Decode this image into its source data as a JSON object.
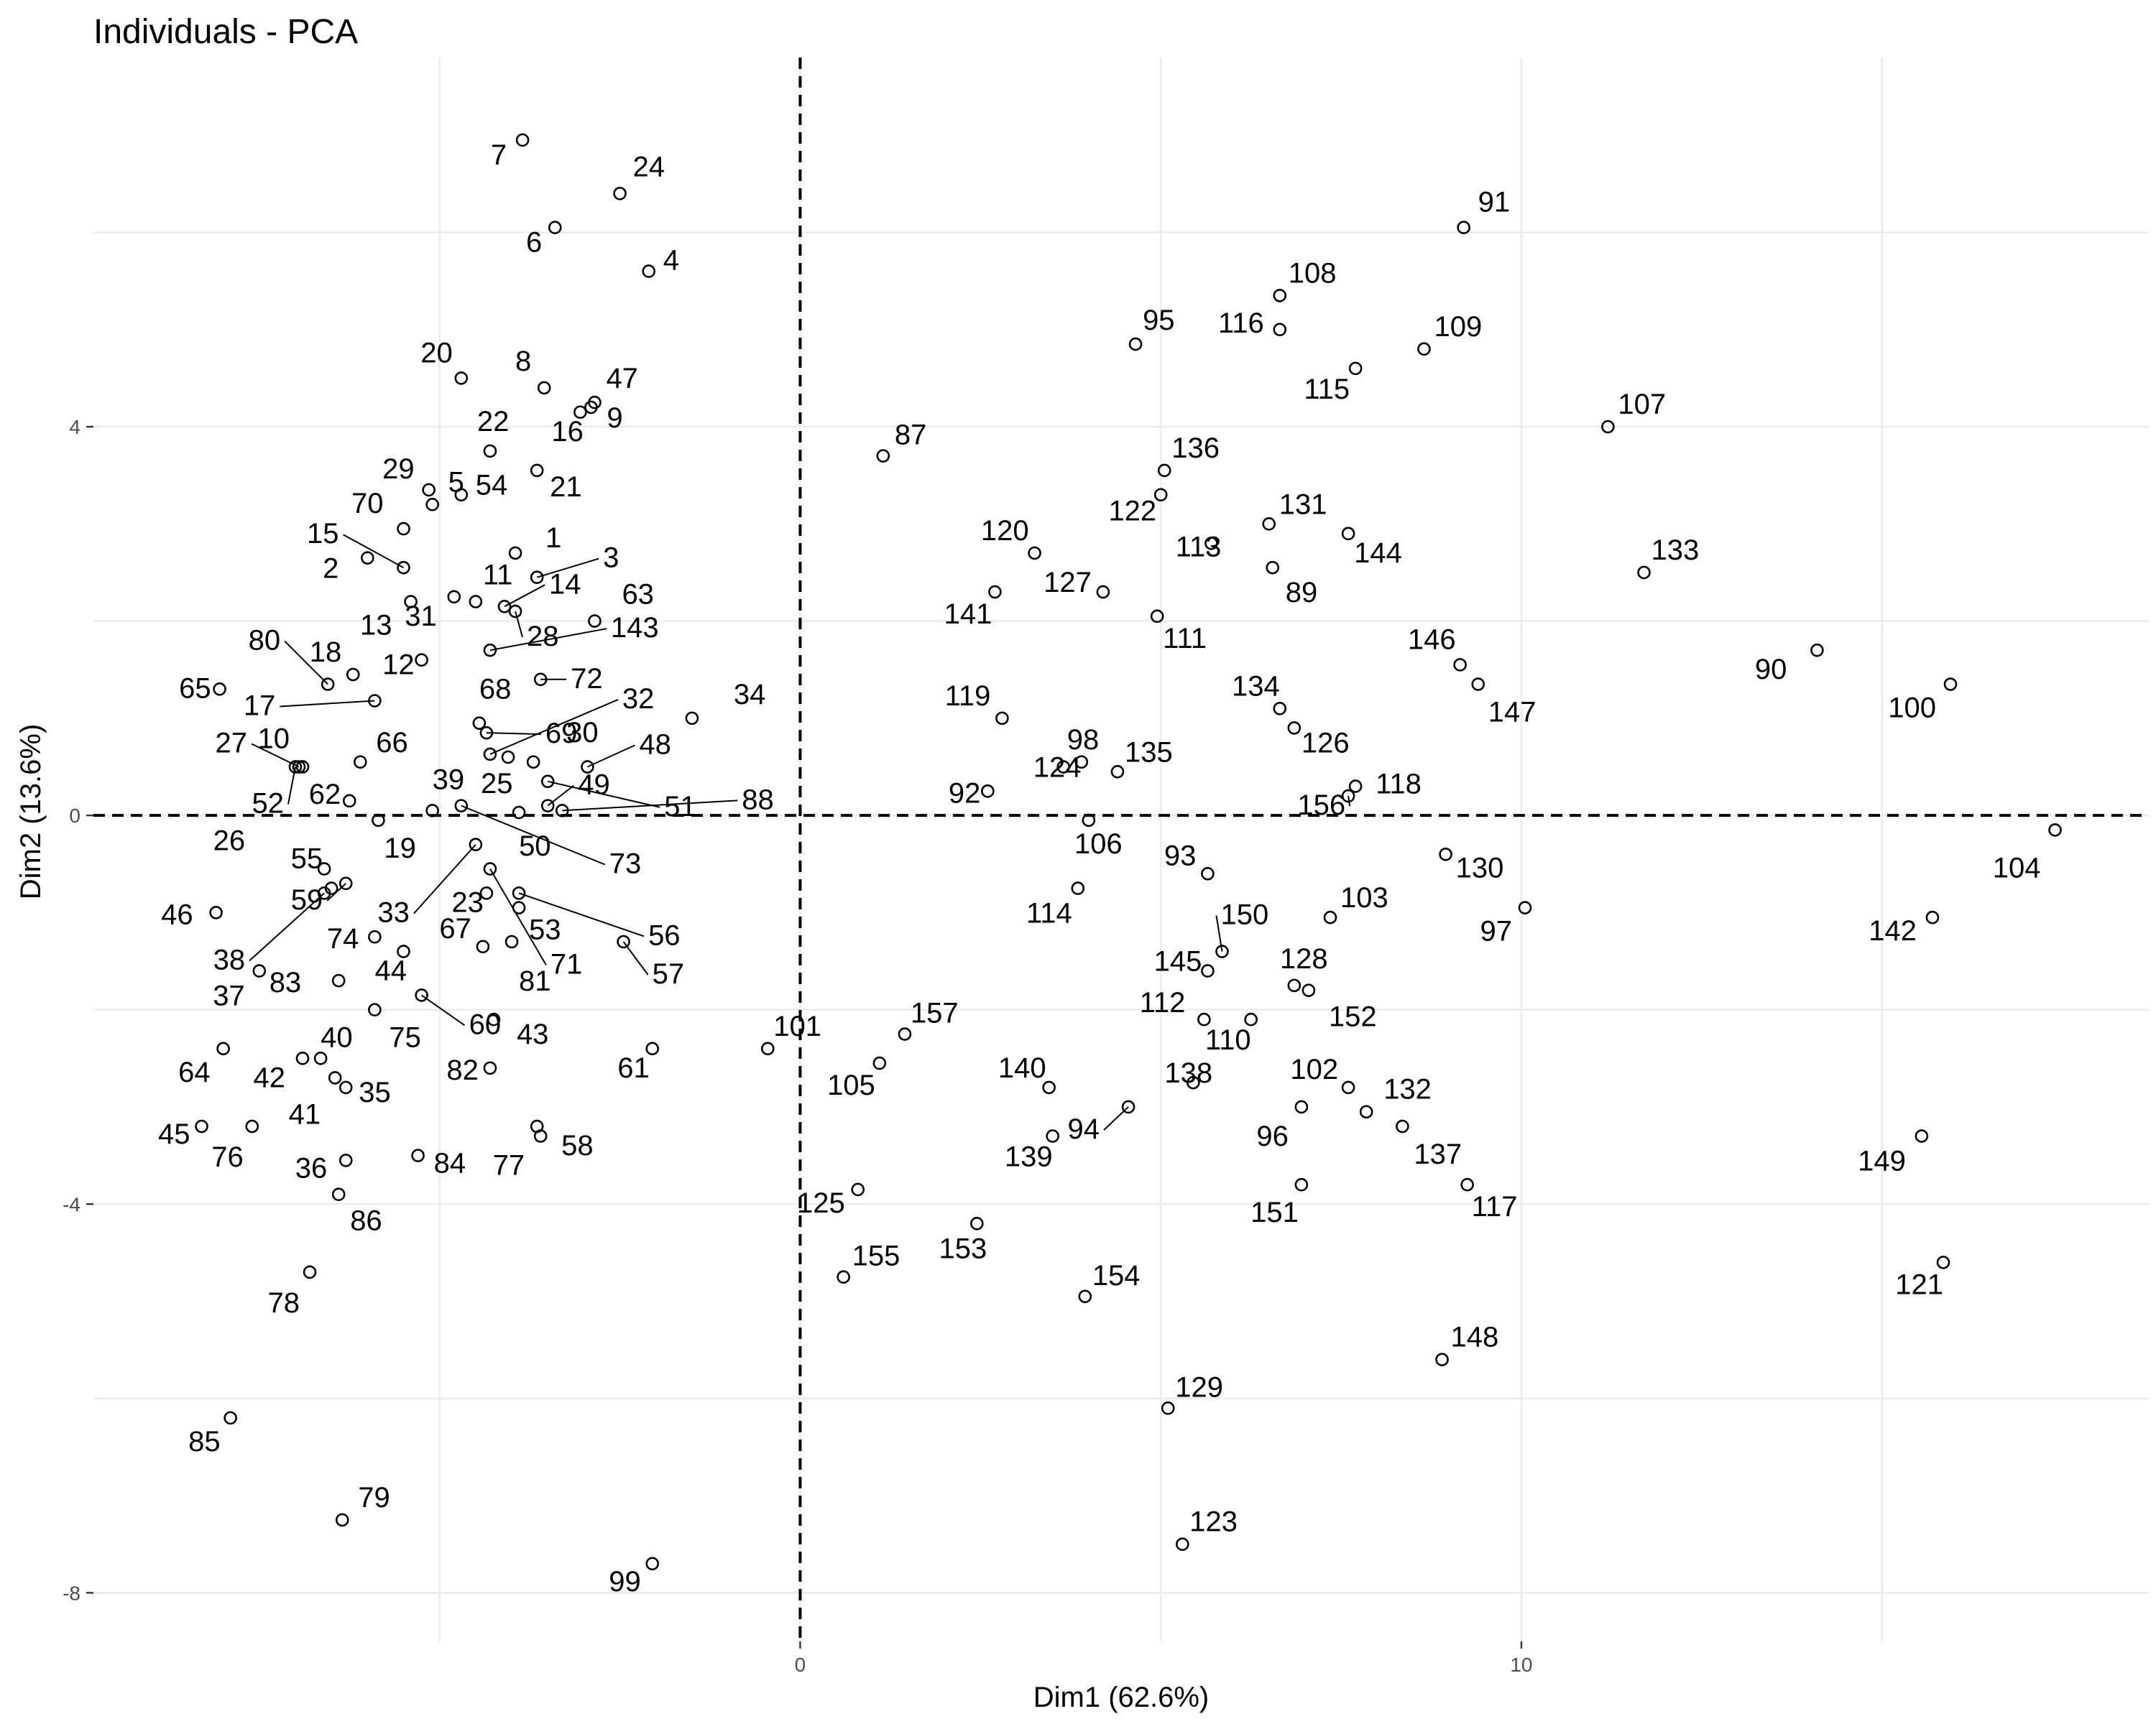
{
  "chart_data": {
    "type": "scatter",
    "title": "Individuals - PCA",
    "xlabel": "Dim1 (62.6%)",
    "ylabel": "Dim2 (13.6%)",
    "xlim": [
      -9.8,
      18.7
    ],
    "ylim": [
      -8.5,
      7.8
    ],
    "x_ticks": [
      0,
      10
    ],
    "y_ticks": [
      4,
      0,
      -4,
      -8
    ],
    "x_tick_labels": [
      "0",
      "10"
    ],
    "y_tick_labels": [
      "4",
      "0",
      "-4",
      "-8"
    ],
    "grid": true,
    "reference_lines": {
      "x": 0,
      "y": 0,
      "style": "dashed"
    },
    "points": [
      {
        "label": "1",
        "x": -3.95,
        "y": 2.7
      },
      {
        "label": "2",
        "x": -6.0,
        "y": 2.65
      },
      {
        "label": "3",
        "x": -3.65,
        "y": 2.45
      },
      {
        "label": "4",
        "x": -2.1,
        "y": 5.6
      },
      {
        "label": "5",
        "x": -5.1,
        "y": 3.2
      },
      {
        "label": "6",
        "x": -3.4,
        "y": 6.05
      },
      {
        "label": "7",
        "x": -3.85,
        "y": 6.95
      },
      {
        "label": "8",
        "x": -3.55,
        "y": 4.4
      },
      {
        "label": "9",
        "x": -2.9,
        "y": 4.2
      },
      {
        "label": "10",
        "x": -6.9,
        "y": 0.5
      },
      {
        "label": "11",
        "x": -4.5,
        "y": 2.2
      },
      {
        "label": "12",
        "x": -5.25,
        "y": 1.6
      },
      {
        "label": "13",
        "x": -5.4,
        "y": 2.2
      },
      {
        "label": "14",
        "x": -4.1,
        "y": 2.15
      },
      {
        "label": "15",
        "x": -5.5,
        "y": 2.55
      },
      {
        "label": "16",
        "x": -3.05,
        "y": 4.15
      },
      {
        "label": "17",
        "x": -5.9,
        "y": 1.18
      },
      {
        "label": "18",
        "x": -6.2,
        "y": 1.45
      },
      {
        "label": "19",
        "x": -5.85,
        "y": -0.05
      },
      {
        "label": "20",
        "x": -4.7,
        "y": 4.5
      },
      {
        "label": "21",
        "x": -3.65,
        "y": 3.55
      },
      {
        "label": "22",
        "x": -4.3,
        "y": 3.75
      },
      {
        "label": "23",
        "x": -4.35,
        "y": -0.8
      },
      {
        "label": "24",
        "x": -2.5,
        "y": 6.4
      },
      {
        "label": "25",
        "x": -4.05,
        "y": 0.6
      },
      {
        "label": "26",
        "x": -6.6,
        "y": -0.55
      },
      {
        "label": "27",
        "x": -6.95,
        "y": 0.5
      },
      {
        "label": "28",
        "x": -3.95,
        "y": 2.1
      },
      {
        "label": "29",
        "x": -5.15,
        "y": 3.35
      },
      {
        "label": "30",
        "x": -3.7,
        "y": 0.55
      },
      {
        "label": "31",
        "x": -4.8,
        "y": 2.25
      },
      {
        "label": "32",
        "x": -4.3,
        "y": 0.63
      },
      {
        "label": "33",
        "x": -4.5,
        "y": -0.3
      },
      {
        "label": "34",
        "x": -1.5,
        "y": 1.0
      },
      {
        "label": "35",
        "x": -6.3,
        "y": -2.8
      },
      {
        "label": "36",
        "x": -6.3,
        "y": -3.55
      },
      {
        "label": "37",
        "x": -7.5,
        "y": -1.6
      },
      {
        "label": "38",
        "x": -6.6,
        "y": -0.8
      },
      {
        "label": "39",
        "x": -5.1,
        "y": 0.05
      },
      {
        "label": "40",
        "x": -6.65,
        "y": -2.5
      },
      {
        "label": "41",
        "x": -6.45,
        "y": -2.7
      },
      {
        "label": "42",
        "x": -6.9,
        "y": -2.5
      },
      {
        "label": "43",
        "x": -4.25,
        "y": -2.1
      },
      {
        "label": "44",
        "x": -5.5,
        "y": -1.4
      },
      {
        "label": "45",
        "x": -8.3,
        "y": -3.2
      },
      {
        "label": "46",
        "x": -8.1,
        "y": -1.0
      },
      {
        "label": "47",
        "x": -2.85,
        "y": 4.25
      },
      {
        "label": "48",
        "x": -2.95,
        "y": 0.5
      },
      {
        "label": "49",
        "x": -3.5,
        "y": 0.1
      },
      {
        "label": "50",
        "x": -3.9,
        "y": 0.03
      },
      {
        "label": "51",
        "x": -3.5,
        "y": 0.35
      },
      {
        "label": "52",
        "x": -7.0,
        "y": 0.5
      },
      {
        "label": "53",
        "x": -3.9,
        "y": -0.95
      },
      {
        "label": "54",
        "x": -4.7,
        "y": 3.3
      },
      {
        "label": "55",
        "x": -6.5,
        "y": -0.75
      },
      {
        "label": "56",
        "x": -3.9,
        "y": -0.8
      },
      {
        "label": "57",
        "x": -2.45,
        "y": -1.3
      },
      {
        "label": "58",
        "x": -3.65,
        "y": -3.2
      },
      {
        "label": "59",
        "x": -6.3,
        "y": -0.7
      },
      {
        "label": "60",
        "x": -5.25,
        "y": -1.85
      },
      {
        "label": "61",
        "x": -2.05,
        "y": -2.4
      },
      {
        "label": "62",
        "x": -6.25,
        "y": 0.15
      },
      {
        "label": "63",
        "x": -2.85,
        "y": 2.0
      },
      {
        "label": "64",
        "x": -8.0,
        "y": -2.4
      },
      {
        "label": "65",
        "x": -8.05,
        "y": 1.3
      },
      {
        "label": "66",
        "x": -6.1,
        "y": 0.55
      },
      {
        "label": "67",
        "x": -4.4,
        "y": -1.35
      },
      {
        "label": "68",
        "x": -4.45,
        "y": 0.95
      },
      {
        "label": "69",
        "x": -4.35,
        "y": 0.85
      },
      {
        "label": "70",
        "x": -5.5,
        "y": 2.95
      },
      {
        "label": "71",
        "x": -4.3,
        "y": -0.55
      },
      {
        "label": "72",
        "x": -3.6,
        "y": 1.4
      },
      {
        "label": "73",
        "x": -4.7,
        "y": 0.1
      },
      {
        "label": "74",
        "x": -5.9,
        "y": -1.25
      },
      {
        "label": "75",
        "x": -5.9,
        "y": -2.0
      },
      {
        "label": "76",
        "x": -7.6,
        "y": -3.2
      },
      {
        "label": "77",
        "x": -3.6,
        "y": -3.3
      },
      {
        "label": "78",
        "x": -6.8,
        "y": -4.7
      },
      {
        "label": "79",
        "x": -6.35,
        "y": -7.25
      },
      {
        "label": "80",
        "x": -6.55,
        "y": 1.35
      },
      {
        "label": "81",
        "x": -4.0,
        "y": -1.3
      },
      {
        "label": "82",
        "x": -4.3,
        "y": -2.6
      },
      {
        "label": "83",
        "x": -6.4,
        "y": -1.7
      },
      {
        "label": "84",
        "x": -5.3,
        "y": -3.5
      },
      {
        "label": "85",
        "x": -7.9,
        "y": -6.2
      },
      {
        "label": "86",
        "x": -6.4,
        "y": -3.9
      },
      {
        "label": "87",
        "x": 1.15,
        "y": 3.7
      },
      {
        "label": "88",
        "x": -3.3,
        "y": 0.05
      },
      {
        "label": "89",
        "x": 6.55,
        "y": 2.55
      },
      {
        "label": "90",
        "x": 14.1,
        "y": 1.7
      },
      {
        "label": "91",
        "x": 9.2,
        "y": 6.05
      },
      {
        "label": "92",
        "x": 2.6,
        "y": 0.25
      },
      {
        "label": "93",
        "x": 5.65,
        "y": -0.6
      },
      {
        "label": "94",
        "x": 4.55,
        "y": -3.0
      },
      {
        "label": "95",
        "x": 4.65,
        "y": 4.85
      },
      {
        "label": "96",
        "x": 6.95,
        "y": -3.0
      },
      {
        "label": "97",
        "x": 10.05,
        "y": -0.95
      },
      {
        "label": "98",
        "x": 3.9,
        "y": 0.55
      },
      {
        "label": "99",
        "x": -2.05,
        "y": -7.7
      },
      {
        "label": "100",
        "x": 15.95,
        "y": 1.35
      },
      {
        "label": "101",
        "x": -0.45,
        "y": -2.4
      },
      {
        "label": "102",
        "x": 7.6,
        "y": -2.8
      },
      {
        "label": "103",
        "x": 7.35,
        "y": -1.05
      },
      {
        "label": "104",
        "x": 17.4,
        "y": -0.15
      },
      {
        "label": "105",
        "x": 1.1,
        "y": -2.55
      },
      {
        "label": "106",
        "x": 4.0,
        "y": -0.05
      },
      {
        "label": "107",
        "x": 11.2,
        "y": 4.0
      },
      {
        "label": "108",
        "x": 6.65,
        "y": 5.35
      },
      {
        "label": "109",
        "x": 8.65,
        "y": 4.8
      },
      {
        "label": "110",
        "x": 6.25,
        "y": -2.1
      },
      {
        "label": "111",
        "x": 4.95,
        "y": 2.05
      },
      {
        "label": "112",
        "x": 5.6,
        "y": -2.1
      },
      {
        "label": "113",
        "x": 5.7,
        "y": 2.8
      },
      {
        "label": "114",
        "x": 3.85,
        "y": -0.75
      },
      {
        "label": "115",
        "x": 7.7,
        "y": 4.6
      },
      {
        "label": "116",
        "x": 6.65,
        "y": 5.0
      },
      {
        "label": "117",
        "x": 9.25,
        "y": -3.8
      },
      {
        "label": "118",
        "x": 7.7,
        "y": 0.3
      },
      {
        "label": "119",
        "x": 2.8,
        "y": 1.0
      },
      {
        "label": "120",
        "x": 3.25,
        "y": 2.7
      },
      {
        "label": "121",
        "x": 15.85,
        "y": -4.6
      },
      {
        "label": "122",
        "x": 5.0,
        "y": 3.3
      },
      {
        "label": "123",
        "x": 5.3,
        "y": -7.5
      },
      {
        "label": "124",
        "x": 3.65,
        "y": 0.5
      },
      {
        "label": "125",
        "x": 0.8,
        "y": -3.85
      },
      {
        "label": "126",
        "x": 6.85,
        "y": 0.9
      },
      {
        "label": "127",
        "x": 4.2,
        "y": 2.3
      },
      {
        "label": "128",
        "x": 6.85,
        "y": -1.75
      },
      {
        "label": "129",
        "x": 5.1,
        "y": -6.1
      },
      {
        "label": "130",
        "x": 8.95,
        "y": -0.4
      },
      {
        "label": "131",
        "x": 6.5,
        "y": 3.0
      },
      {
        "label": "132",
        "x": 7.85,
        "y": -3.05
      },
      {
        "label": "133",
        "x": 11.7,
        "y": 2.5
      },
      {
        "label": "134",
        "x": 6.65,
        "y": 1.1
      },
      {
        "label": "135",
        "x": 4.4,
        "y": 0.45
      },
      {
        "label": "136",
        "x": 5.05,
        "y": 3.55
      },
      {
        "label": "137",
        "x": 8.35,
        "y": -3.2
      },
      {
        "label": "138",
        "x": 5.45,
        "y": -2.75
      },
      {
        "label": "139",
        "x": 3.5,
        "y": -3.3
      },
      {
        "label": "140",
        "x": 3.45,
        "y": -2.8
      },
      {
        "label": "141",
        "x": 2.7,
        "y": 2.3
      },
      {
        "label": "142",
        "x": 15.7,
        "y": -1.05
      },
      {
        "label": "143",
        "x": -4.3,
        "y": 1.7
      },
      {
        "label": "144",
        "x": 7.6,
        "y": 2.9
      },
      {
        "label": "145",
        "x": 5.65,
        "y": -1.6
      },
      {
        "label": "146",
        "x": 9.15,
        "y": 1.55
      },
      {
        "label": "147",
        "x": 9.4,
        "y": 1.35
      },
      {
        "label": "148",
        "x": 8.9,
        "y": -5.6
      },
      {
        "label": "149",
        "x": 15.55,
        "y": -3.3
      },
      {
        "label": "150",
        "x": 5.85,
        "y": -1.4
      },
      {
        "label": "151",
        "x": 6.95,
        "y": -3.8
      },
      {
        "label": "152",
        "x": 7.05,
        "y": -1.8
      },
      {
        "label": "153",
        "x": 2.45,
        "y": -4.2
      },
      {
        "label": "154",
        "x": 3.95,
        "y": -4.95
      },
      {
        "label": "155",
        "x": 0.6,
        "y": -4.75
      },
      {
        "label": "156",
        "x": 7.6,
        "y": 0.2
      },
      {
        "label": "157",
        "x": 1.45,
        "y": -2.25
      }
    ]
  }
}
